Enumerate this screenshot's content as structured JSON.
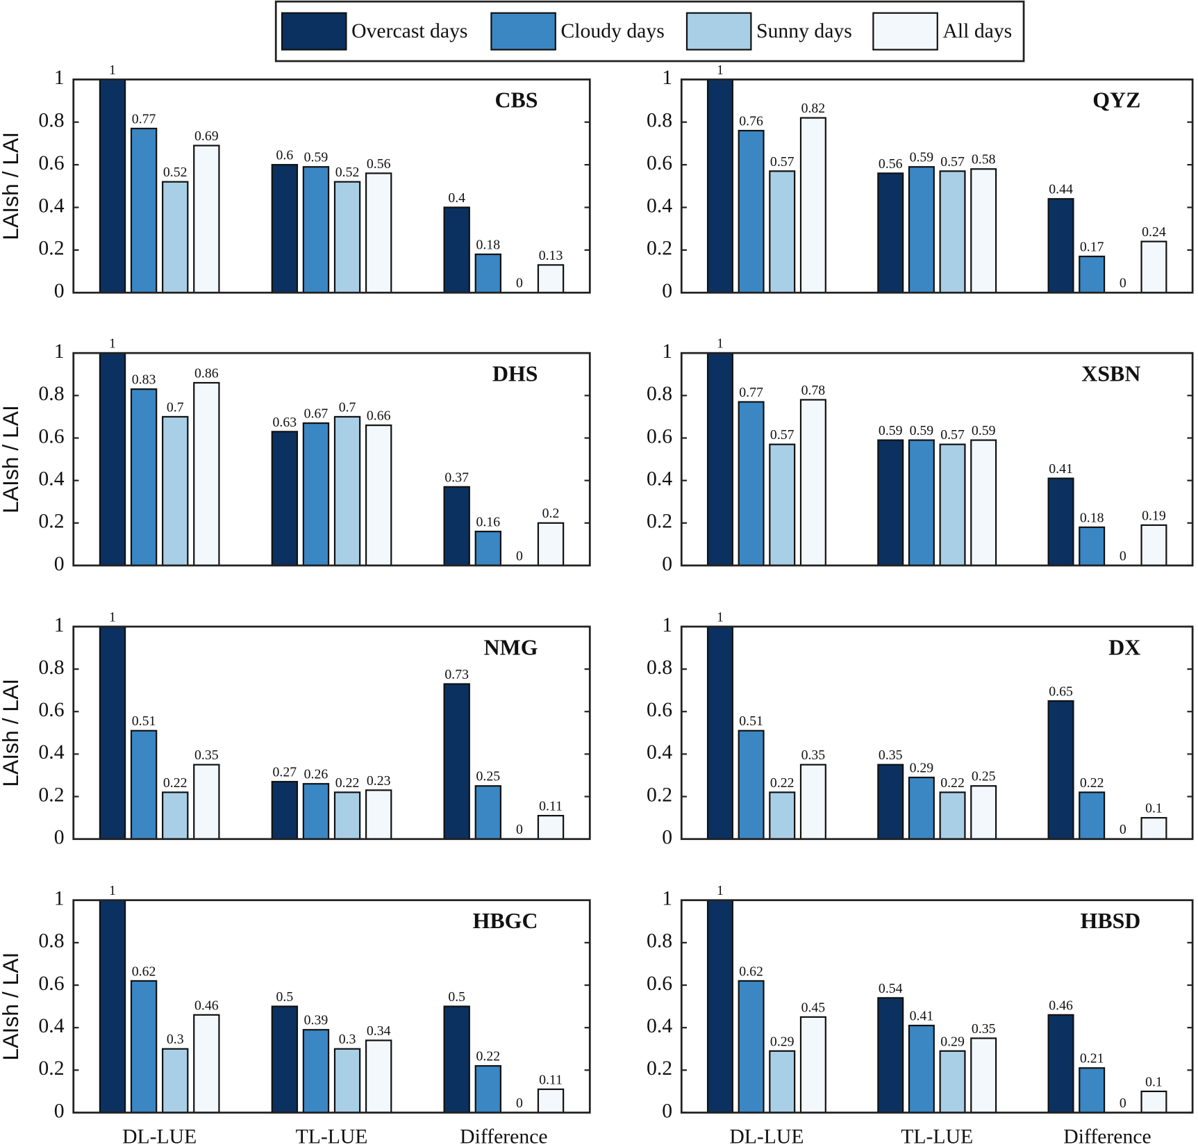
{
  "chart_data": [
    {
      "type": "bar",
      "title": "CBS",
      "ylabel": "LAIsh / LAI",
      "ylim": [
        0,
        1
      ],
      "yticks": [
        0,
        0.2,
        0.4,
        0.6,
        0.8,
        1
      ],
      "series": [
        {
          "name": "Overcast days",
          "color": "#0b3160",
          "values": [
            1,
            0.6,
            0.4
          ]
        },
        {
          "name": "Cloudy days",
          "color": "#3a87c4",
          "values": [
            0.77,
            0.59,
            0.18
          ]
        },
        {
          "name": "Sunny days",
          "color": "#a9cfe6",
          "values": [
            0.52,
            0.52,
            0
          ]
        },
        {
          "name": "All days",
          "color": "#f3f8fd",
          "values": [
            0.69,
            0.56,
            0.13
          ]
        }
      ]
    },
    {
      "type": "bar",
      "title": "QYZ",
      "ylim": [
        0,
        1
      ],
      "yticks": [
        0,
        0.2,
        0.4,
        0.6,
        0.8,
        1
      ],
      "series": [
        {
          "color": "#0b3160",
          "values": [
            1,
            0.56,
            0.44
          ]
        },
        {
          "color": "#3a87c4",
          "values": [
            0.76,
            0.59,
            0.17
          ]
        },
        {
          "color": "#a9cfe6",
          "values": [
            0.57,
            0.57,
            0
          ]
        },
        {
          "color": "#f3f8fd",
          "values": [
            0.82,
            0.58,
            0.24
          ]
        }
      ]
    },
    {
      "type": "bar",
      "title": "DHS",
      "ylabel": "LAIsh / LAI",
      "ylim": [
        0,
        1
      ],
      "yticks": [
        0,
        0.2,
        0.4,
        0.6,
        0.8,
        1
      ],
      "series": [
        {
          "color": "#0b3160",
          "values": [
            1,
            0.63,
            0.37
          ]
        },
        {
          "color": "#3a87c4",
          "values": [
            0.83,
            0.67,
            0.16
          ]
        },
        {
          "color": "#a9cfe6",
          "values": [
            0.7,
            0.7,
            0
          ]
        },
        {
          "color": "#f3f8fd",
          "values": [
            0.86,
            0.66,
            0.2
          ]
        }
      ]
    },
    {
      "type": "bar",
      "title": "XSBN",
      "ylim": [
        0,
        1
      ],
      "yticks": [
        0,
        0.2,
        0.4,
        0.6,
        0.8,
        1
      ],
      "series": [
        {
          "color": "#0b3160",
          "values": [
            1,
            0.59,
            0.41
          ]
        },
        {
          "color": "#3a87c4",
          "values": [
            0.77,
            0.59,
            0.18
          ]
        },
        {
          "color": "#a9cfe6",
          "values": [
            0.57,
            0.57,
            0
          ]
        },
        {
          "color": "#f3f8fd",
          "values": [
            0.78,
            0.59,
            0.19
          ]
        }
      ]
    },
    {
      "type": "bar",
      "title": "NMG",
      "ylabel": "LAIsh / LAI",
      "ylim": [
        0,
        1
      ],
      "yticks": [
        0,
        0.2,
        0.4,
        0.6,
        0.8,
        1
      ],
      "series": [
        {
          "color": "#0b3160",
          "values": [
            1,
            0.27,
            0.73
          ]
        },
        {
          "color": "#3a87c4",
          "values": [
            0.51,
            0.26,
            0.25
          ]
        },
        {
          "color": "#a9cfe6",
          "values": [
            0.22,
            0.22,
            0
          ]
        },
        {
          "color": "#f3f8fd",
          "values": [
            0.35,
            0.23,
            0.11
          ]
        }
      ]
    },
    {
      "type": "bar",
      "title": "DX",
      "ylim": [
        0,
        1
      ],
      "yticks": [
        0,
        0.2,
        0.4,
        0.6,
        0.8,
        1
      ],
      "series": [
        {
          "color": "#0b3160",
          "values": [
            1,
            0.35,
            0.65
          ]
        },
        {
          "color": "#3a87c4",
          "values": [
            0.51,
            0.29,
            0.22
          ]
        },
        {
          "color": "#a9cfe6",
          "values": [
            0.22,
            0.22,
            0
          ]
        },
        {
          "color": "#f3f8fd",
          "values": [
            0.35,
            0.25,
            0.1
          ]
        }
      ]
    },
    {
      "type": "bar",
      "title": "HBGC",
      "ylabel": "LAIsh / LAI",
      "categories": [
        "DL-LUE",
        "TL-LUE",
        "Difference"
      ],
      "ylim": [
        0,
        1
      ],
      "yticks": [
        0,
        0.2,
        0.4,
        0.6,
        0.8,
        1
      ],
      "series": [
        {
          "color": "#0b3160",
          "values": [
            1,
            0.5,
            0.5
          ]
        },
        {
          "color": "#3a87c4",
          "values": [
            0.62,
            0.39,
            0.22
          ]
        },
        {
          "color": "#a9cfe6",
          "values": [
            0.3,
            0.3,
            0
          ]
        },
        {
          "color": "#f3f8fd",
          "values": [
            0.46,
            0.34,
            0.11
          ]
        }
      ]
    },
    {
      "type": "bar",
      "title": "HBSD",
      "categories": [
        "DL-LUE",
        "TL-LUE",
        "Difference"
      ],
      "ylim": [
        0,
        1
      ],
      "yticks": [
        0,
        0.2,
        0.4,
        0.6,
        0.8,
        1
      ],
      "series": [
        {
          "color": "#0b3160",
          "values": [
            1,
            0.54,
            0.46
          ]
        },
        {
          "color": "#3a87c4",
          "values": [
            0.62,
            0.41,
            0.21
          ]
        },
        {
          "color": "#a9cfe6",
          "values": [
            0.29,
            0.29,
            0
          ]
        },
        {
          "color": "#f3f8fd",
          "values": [
            0.45,
            0.35,
            0.1
          ]
        }
      ]
    }
  ]
}
